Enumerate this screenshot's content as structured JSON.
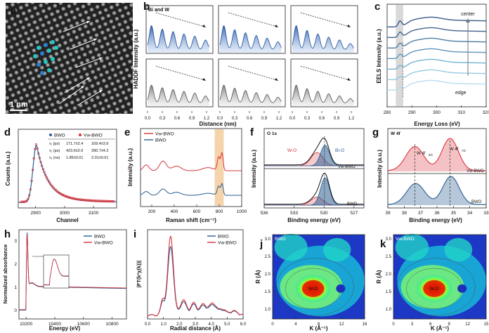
{
  "panel_letters": {
    "a": "a",
    "b": "b",
    "c": "c",
    "d": "d",
    "e": "e",
    "f": "f",
    "g": "g",
    "h": "h",
    "i": "i",
    "j": "j",
    "k": "k"
  },
  "colors": {
    "red": "#d9343a",
    "blue": "#2b5e93",
    "gray": "#8a8a8a",
    "bar_fill": "#f5d3ab",
    "bi_fill": "#3f6fb6",
    "stem": "#2a9bd8"
  },
  "image_a": {
    "scale_label": "1 nm"
  },
  "chart_data": [
    {
      "panel": "b",
      "type": "line",
      "title": "Bi and W",
      "xlabel": "Distance (nm)",
      "ylabel": "HADDF Intensity (a.u.)",
      "xticks": [
        "0.0",
        "0.3",
        "0.6",
        "0.9",
        "1.2"
      ],
      "xlim": [
        0,
        1.3
      ],
      "series": [
        {
          "values": [
            0.62,
            0.15,
            0.55,
            0.1,
            0.5,
            0.12,
            0.45,
            0.1,
            0.4,
            0.08,
            0.3,
            0.05
          ]
        }
      ]
    },
    {
      "panel": "c",
      "type": "line",
      "xlabel": "Energy Loss (eV)",
      "ylabel": "EELS Intensity (a.u.)",
      "xticks": [
        "280",
        "290",
        "300",
        "310",
        "320"
      ],
      "xlim": [
        280,
        320
      ],
      "annotations": [
        "center",
        "edge"
      ],
      "spectra": 7
    },
    {
      "panel": "d",
      "type": "line",
      "xlabel": "Channel",
      "ylabel": "Counts (a.u.)",
      "xticks": [
        "2900",
        "3000",
        "3100"
      ],
      "legend": [
        "BWO",
        "Vw-BWO"
      ],
      "table": {
        "rows": [
          {
            "label": "τ₁ (ps)",
            "bwo": "171.7±2.4",
            "vw": "169.4±3.6"
          },
          {
            "label": "τ₂ (ps)",
            "bwo": "423.6±2.6",
            "vw": "390.7±4.2"
          },
          {
            "label": "τ₃ (ns)",
            "bwo": "1.85±0.01",
            "vw": "2.01±0.01"
          }
        ]
      }
    },
    {
      "panel": "e",
      "type": "line",
      "xlabel": "Raman shift (cm⁻¹)",
      "ylabel": "Intensity (a.u.)",
      "xticks": [
        "200",
        "400",
        "600",
        "800",
        "1000"
      ],
      "xlim": [
        100,
        1000
      ],
      "legend": [
        "Vw-BWO",
        "BWO"
      ]
    },
    {
      "panel": "f",
      "type": "line",
      "title": "O 1s",
      "xlabel": "Binding energy (eV)",
      "ylabel": "Intensity (a.u.)",
      "xticks": [
        "536",
        "533",
        "530",
        "527"
      ],
      "xlim": [
        536,
        526
      ],
      "labels": {
        "wo": "W-O",
        "bio": "Bi-O",
        "vw": "Vw-BWO",
        "bwo": "BWO"
      }
    },
    {
      "panel": "g",
      "type": "line",
      "title": "W 4f",
      "xlabel": "Binding energy (eV)",
      "ylabel": "Intensity (a.u.)",
      "xticks": [
        "39",
        "38",
        "37",
        "36",
        "35",
        "34",
        "33"
      ],
      "xlim": [
        39,
        33
      ],
      "labels": {
        "w52": "W 4f5/2",
        "w72": "W 4f7/2",
        "vw": "Vw-BWO",
        "bwo": "BWO"
      }
    },
    {
      "panel": "h",
      "type": "line",
      "xlabel": "Energy (eV)",
      "ylabel": "Normalized absorbance",
      "xticks": [
        "10200",
        "10400",
        "10600",
        "10800"
      ],
      "yticks": [
        "0",
        "1",
        "2",
        "3"
      ],
      "legend": [
        "BWO",
        "Vw-BWO"
      ]
    },
    {
      "panel": "i",
      "type": "line",
      "xlabel": "Radial distance (Å)",
      "ylabel": "|FT(k²χ(k))|",
      "xticks": [
        "0.0",
        "1.0",
        "2.0",
        "3.0",
        "4.0",
        "5.0",
        "6.0"
      ],
      "legend": [
        "BWO",
        "Vw-BWO"
      ]
    },
    {
      "panel": "j",
      "type": "heatmap",
      "title": "BWO",
      "xlabel": "K (Å⁻¹)",
      "ylabel": "R (Å)",
      "xticks": [
        "0",
        "4",
        "8",
        "12",
        "16"
      ],
      "yticks": [
        "1.0",
        "1.5",
        "2.0",
        "2.5",
        "3.0"
      ],
      "label": "W-O"
    },
    {
      "panel": "k",
      "type": "heatmap",
      "title": "Vw-BWO",
      "xlabel": "K (Å⁻¹)",
      "ylabel": "R (Å)",
      "xticks": [
        "0",
        "3",
        "6",
        "9",
        "12",
        "15"
      ],
      "yticks": [
        "1.0",
        "1.5",
        "2.0",
        "2.5",
        "3.0"
      ],
      "label": "W-O"
    }
  ]
}
